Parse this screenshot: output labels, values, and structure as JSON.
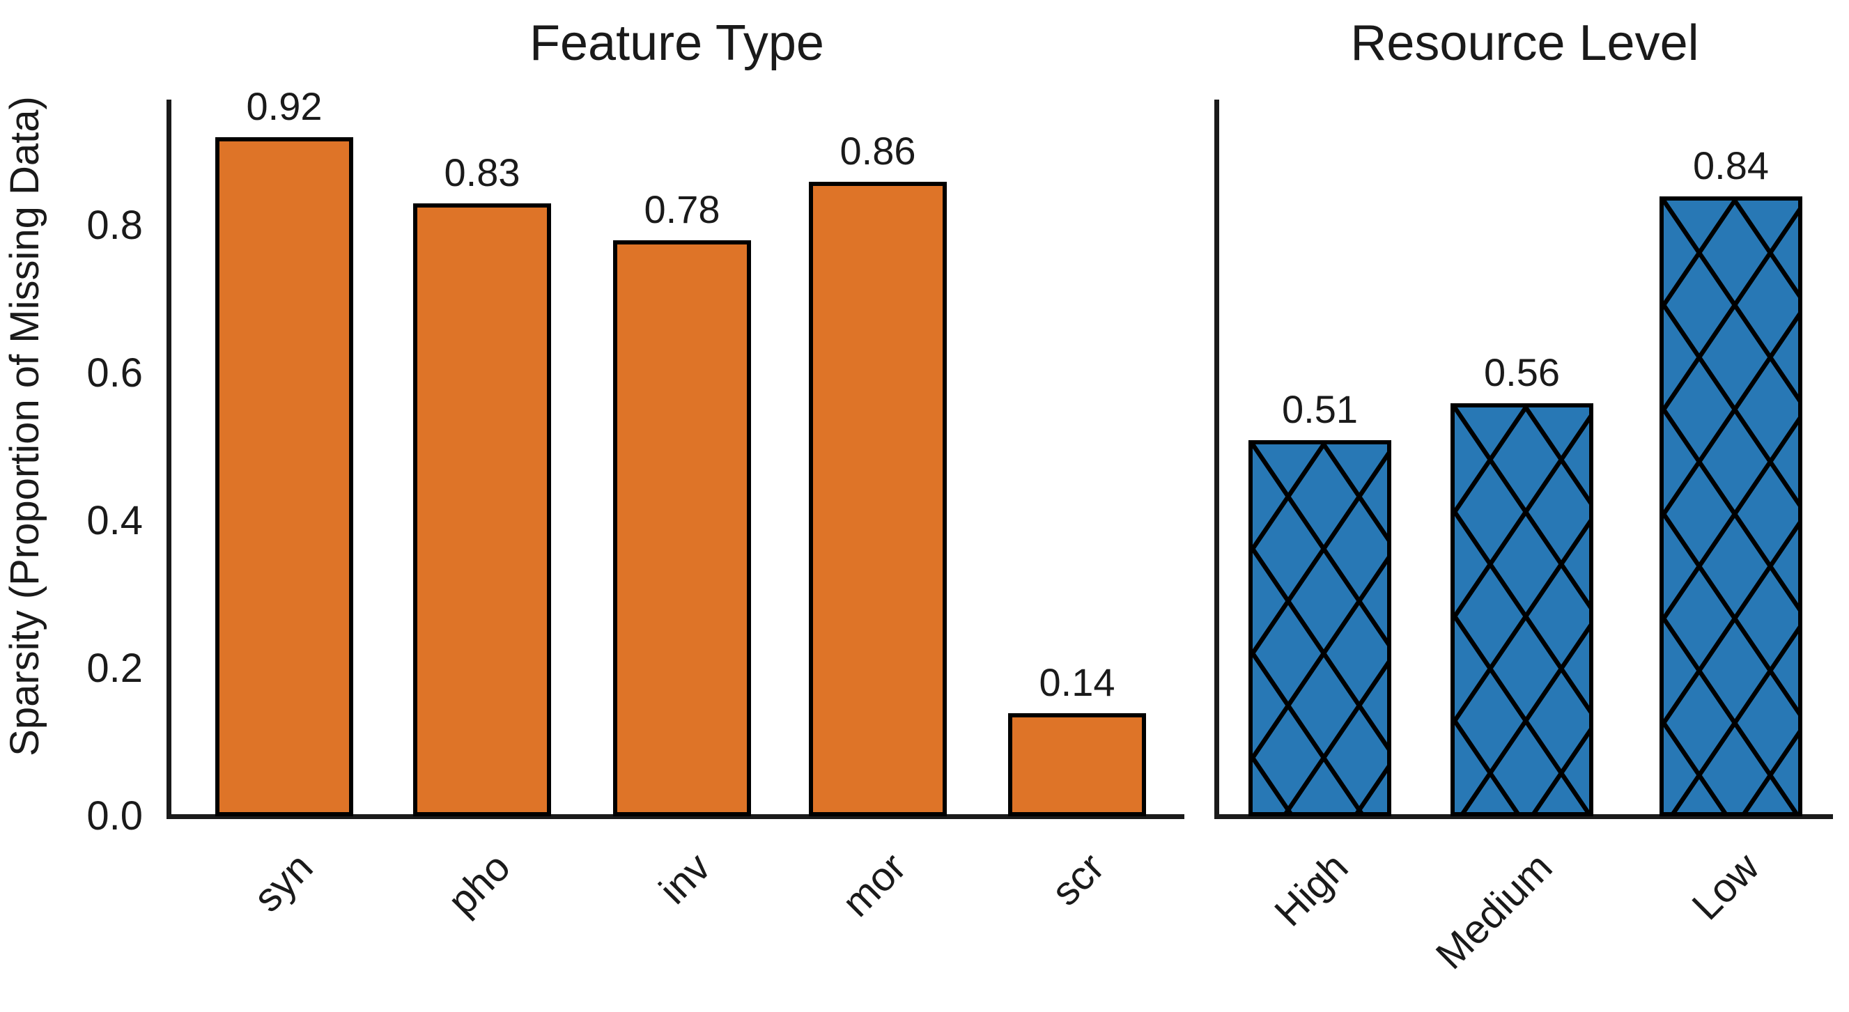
{
  "ylabel": "Sparsity (Proportion of Missing Data)",
  "yticks": [
    "0.0",
    "0.2",
    "0.4",
    "0.6",
    "0.8"
  ],
  "colors": {
    "feature_bar": "#DE7428",
    "resource_bar": "#2878B5",
    "bar_edge": "#000000",
    "spine": "#1a1a1a",
    "text": "#1a1a1a"
  },
  "chart_data": [
    {
      "type": "bar",
      "title": "Feature Type",
      "categories": [
        "syn",
        "pho",
        "inv",
        "mor",
        "scr"
      ],
      "values": [
        0.92,
        0.83,
        0.78,
        0.86,
        0.14
      ],
      "value_labels": [
        "0.92",
        "0.83",
        "0.78",
        "0.86",
        "0.14"
      ],
      "xlabel": "",
      "ylabel": "Sparsity (Proportion of Missing Data)",
      "ylim": [
        0,
        0.971
      ],
      "ytick_values": [
        0.0,
        0.2,
        0.4,
        0.6,
        0.8
      ],
      "bar_color": "#DE7428",
      "bar_edge_color": "#000000",
      "hatch": "none",
      "grid": false,
      "legend": "none"
    },
    {
      "type": "bar",
      "title": "Resource Level",
      "categories": [
        "High",
        "Medium",
        "Low"
      ],
      "values": [
        0.51,
        0.56,
        0.84
      ],
      "value_labels": [
        "0.51",
        "0.56",
        "0.84"
      ],
      "xlabel": "",
      "ylabel": "Sparsity (Proportion of Missing Data)",
      "ylim": [
        0,
        0.971
      ],
      "ytick_values": [
        0.0,
        0.2,
        0.4,
        0.6,
        0.8
      ],
      "bar_color": "#2878B5",
      "bar_edge_color": "#000000",
      "hatch": "x",
      "grid": false,
      "legend": "none"
    }
  ]
}
